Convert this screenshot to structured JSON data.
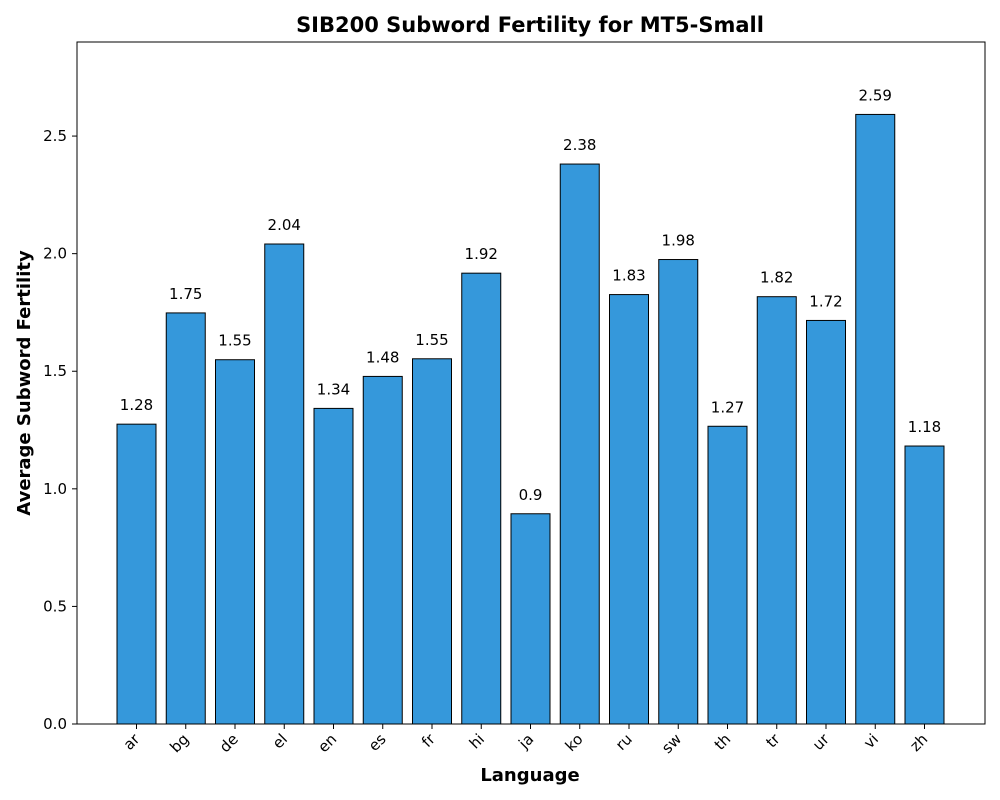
{
  "chart_data": {
    "type": "bar",
    "title": "SIB200 Subword Fertility for MT5-Small",
    "xlabel": "Language",
    "ylabel": "Average Subword Fertility",
    "categories": [
      "ar",
      "bg",
      "de",
      "el",
      "en",
      "es",
      "fr",
      "hi",
      "ja",
      "ko",
      "ru",
      "sw",
      "th",
      "tr",
      "ur",
      "vi",
      "zh"
    ],
    "values": [
      1.275,
      1.748,
      1.549,
      2.041,
      1.342,
      1.478,
      1.553,
      1.917,
      0.894,
      2.381,
      1.826,
      1.975,
      1.266,
      1.817,
      1.716,
      2.592,
      1.182
    ],
    "data_labels": [
      "1.28",
      "1.75",
      "1.55",
      "2.04",
      "1.34",
      "1.48",
      "1.55",
      "1.92",
      "0.9",
      "2.38",
      "1.83",
      "1.98",
      "1.27",
      "1.82",
      "1.72",
      "2.59",
      "1.18"
    ],
    "ylim": [
      0,
      2.9
    ],
    "yticks": [
      "0.0",
      "0.5",
      "1.0",
      "1.5",
      "2.0",
      "2.5"
    ],
    "bar_color": "#3598db",
    "edge_color": "#000000",
    "grid": false,
    "legend": "none"
  }
}
